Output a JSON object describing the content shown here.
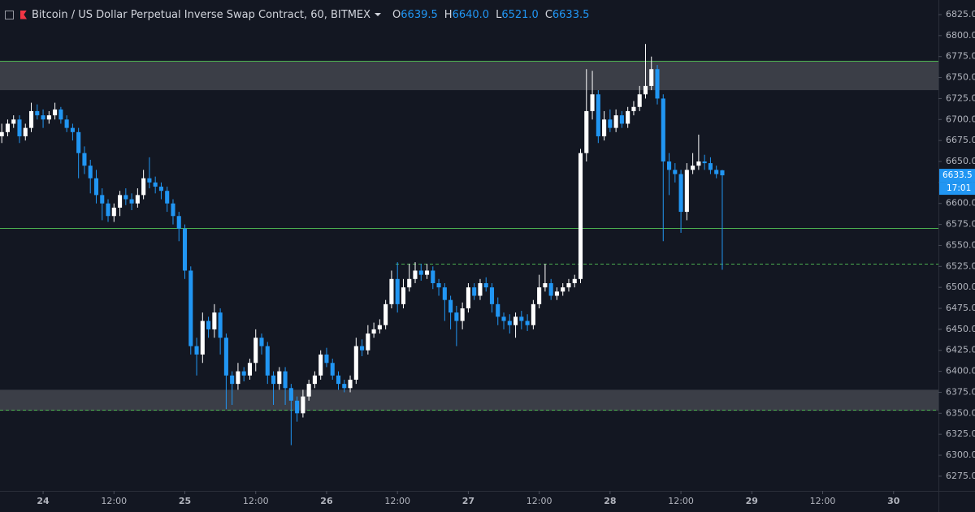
{
  "header": {
    "symbol": "Bitcoin / US Dollar Perpetual Inverse Swap Contract, 60, BITMEX",
    "ohlc": [
      {
        "key": "O",
        "value": "6639.5"
      },
      {
        "key": "H",
        "value": "6640.0"
      },
      {
        "key": "L",
        "value": "6521.0"
      },
      {
        "key": "C",
        "value": "6633.5"
      }
    ]
  },
  "chart_data": {
    "type": "candlestick",
    "up_color": "#ffffff",
    "down_color": "#2196f3",
    "grid": false,
    "xlim": [
      -7.3,
      151.6
    ],
    "ylim": [
      6257.5,
      6842.4
    ],
    "xticks": [
      {
        "value": 0,
        "label": "24"
      },
      {
        "value": 12,
        "label": "12:00"
      },
      {
        "value": 24,
        "label": "25"
      },
      {
        "value": 36,
        "label": "12:00"
      },
      {
        "value": 48,
        "label": "26"
      },
      {
        "value": 60,
        "label": "12:00"
      },
      {
        "value": 72,
        "label": "27"
      },
      {
        "value": 84,
        "label": "12:00"
      },
      {
        "value": 96,
        "label": "28"
      },
      {
        "value": 108,
        "label": "12:00"
      },
      {
        "value": 120,
        "label": "29"
      },
      {
        "value": 132,
        "label": "12:00"
      },
      {
        "value": 144,
        "label": "30"
      }
    ],
    "yticks": [
      {
        "value": 6275,
        "label": "6275.0"
      },
      {
        "value": 6300,
        "label": "6300.0"
      },
      {
        "value": 6325,
        "label": "6325.0"
      },
      {
        "value": 6350,
        "label": "6350.0"
      },
      {
        "value": 6375,
        "label": "6375.0"
      },
      {
        "value": 6400,
        "label": "6400.0"
      },
      {
        "value": 6425,
        "label": "6425.0"
      },
      {
        "value": 6450,
        "label": "6450.0"
      },
      {
        "value": 6475,
        "label": "6475.0"
      },
      {
        "value": 6500,
        "label": "6500.0"
      },
      {
        "value": 6525,
        "label": "6525.0"
      },
      {
        "value": 6550,
        "label": "6550.0"
      },
      {
        "value": 6575,
        "label": "6575.0"
      },
      {
        "value": 6600,
        "label": "6600.0"
      },
      {
        "value": 6625,
        "label": "6625.0"
      },
      {
        "value": 6650,
        "label": "6650.0"
      },
      {
        "value": 6675,
        "label": "6675.0"
      },
      {
        "value": 6700,
        "label": "6700.0"
      },
      {
        "value": 6725,
        "label": "6725.0"
      },
      {
        "value": 6750,
        "label": "6750.0"
      },
      {
        "value": 6775,
        "label": "6775.0"
      },
      {
        "value": 6800,
        "label": "6800.0"
      },
      {
        "value": 6825,
        "label": "6825.0"
      }
    ],
    "x": [
      -7,
      -6,
      -5,
      -4,
      -3,
      -2,
      -1,
      0,
      1,
      2,
      3,
      4,
      5,
      6,
      7,
      8,
      9,
      10,
      11,
      12,
      13,
      14,
      15,
      16,
      17,
      18,
      19,
      20,
      21,
      22,
      23,
      24,
      25,
      26,
      27,
      28,
      29,
      30,
      31,
      32,
      33,
      34,
      35,
      36,
      37,
      38,
      39,
      40,
      41,
      42,
      43,
      44,
      45,
      46,
      47,
      48,
      49,
      50,
      51,
      52,
      53,
      54,
      55,
      56,
      57,
      58,
      59,
      60,
      61,
      62,
      63,
      64,
      65,
      66,
      67,
      68,
      69,
      70,
      71,
      72,
      73,
      74,
      75,
      76,
      77,
      78,
      79,
      80,
      81,
      82,
      83,
      84,
      85,
      86,
      87,
      88,
      89,
      90,
      91,
      92,
      93,
      94,
      95,
      96,
      97,
      98,
      99,
      100,
      101,
      102,
      103,
      104,
      105,
      106,
      107,
      108,
      109,
      110,
      111,
      112,
      113,
      114,
      115
    ],
    "open": [
      6680,
      6685,
      6695,
      6700,
      6680,
      6690,
      6710,
      6705,
      6700,
      6705,
      6712,
      6700,
      6690,
      6685,
      6660,
      6645,
      6630,
      6610,
      6600,
      6585,
      6595,
      6610,
      6605,
      6600,
      6610,
      6630,
      6625,
      6620,
      6615,
      6600,
      6585,
      6570,
      6520,
      6430,
      6420,
      6460,
      6450,
      6470,
      6440,
      6395,
      6385,
      6400,
      6395,
      6410,
      6440,
      6430,
      6395,
      6385,
      6400,
      6380,
      6365,
      6350,
      6370,
      6385,
      6395,
      6420,
      6410,
      6395,
      6385,
      6380,
      6390,
      6430,
      6425,
      6445,
      6450,
      6455,
      6480,
      6510,
      6480,
      6500,
      6510,
      6520,
      6515,
      6520,
      6505,
      6500,
      6485,
      6470,
      6460,
      6475,
      6500,
      6490,
      6505,
      6500,
      6480,
      6465,
      6460,
      6455,
      6465,
      6460,
      6455,
      6480,
      6500,
      6505,
      6490,
      6495,
      6500,
      6505,
      6510,
      6660,
      6710,
      6730,
      6680,
      6700,
      6690,
      6705,
      6695,
      6710,
      6715,
      6730,
      6740,
      6760,
      6725,
      6650,
      6640,
      6635,
      6590,
      6640,
      6645,
      6650,
      6648,
      6640,
      6639.5
    ],
    "high": [
      6695,
      6700,
      6705,
      6705,
      6695,
      6720,
      6718,
      6712,
      6710,
      6720,
      6715,
      6705,
      6695,
      6690,
      6668,
      6652,
      6640,
      6618,
      6605,
      6600,
      6615,
      6618,
      6612,
      6618,
      6640,
      6655,
      6632,
      6625,
      6620,
      6605,
      6590,
      6575,
      6525,
      6440,
      6470,
      6465,
      6480,
      6475,
      6445,
      6400,
      6410,
      6405,
      6415,
      6450,
      6445,
      6435,
      6400,
      6405,
      6405,
      6385,
      6370,
      6378,
      6390,
      6400,
      6425,
      6428,
      6415,
      6400,
      6390,
      6395,
      6440,
      6438,
      6455,
      6458,
      6462,
      6485,
      6520,
      6530,
      6510,
      6528,
      6530,
      6528,
      6528,
      6525,
      6510,
      6505,
      6490,
      6478,
      6482,
      6505,
      6505,
      6510,
      6512,
      6505,
      6488,
      6470,
      6468,
      6470,
      6472,
      6468,
      6485,
      6515,
      6528,
      6510,
      6500,
      6505,
      6510,
      6515,
      6665,
      6760,
      6758,
      6735,
      6710,
      6712,
      6712,
      6710,
      6715,
      6722,
      6740,
      6790,
      6775,
      6765,
      6730,
      6660,
      6648,
      6640,
      6648,
      6660,
      6682,
      6658,
      6655,
      6645,
      6640
    ],
    "low": [
      6672,
      6680,
      6690,
      6672,
      6675,
      6685,
      6700,
      6690,
      6695,
      6700,
      6695,
      6685,
      6675,
      6630,
      6635,
      6612,
      6600,
      6580,
      6578,
      6578,
      6585,
      6598,
      6592,
      6595,
      6605,
      6618,
      6612,
      6605,
      6590,
      6575,
      6555,
      6510,
      6420,
      6395,
      6410,
      6440,
      6440,
      6420,
      6355,
      6360,
      6378,
      6388,
      6390,
      6400,
      6420,
      6385,
      6360,
      6378,
      6360,
      6312,
      6340,
      6345,
      6365,
      6380,
      6390,
      6405,
      6390,
      6378,
      6375,
      6375,
      6385,
      6418,
      6420,
      6440,
      6445,
      6450,
      6475,
      6470,
      6475,
      6495,
      6505,
      6508,
      6510,
      6498,
      6490,
      6460,
      6450,
      6430,
      6450,
      6470,
      6485,
      6485,
      6495,
      6470,
      6455,
      6450,
      6445,
      6440,
      6450,
      6448,
      6450,
      6475,
      6495,
      6485,
      6485,
      6490,
      6495,
      6500,
      6505,
      6650,
      6700,
      6672,
      6675,
      6685,
      6685,
      6690,
      6690,
      6705,
      6710,
      6725,
      6735,
      6718,
      6555,
      6610,
      6625,
      6565,
      6580,
      6635,
      6640,
      6640,
      6635,
      6630,
      6521
    ],
    "close": [
      6685,
      6695,
      6700,
      6680,
      6690,
      6710,
      6705,
      6700,
      6705,
      6712,
      6700,
      6690,
      6685,
      6660,
      6645,
      6630,
      6610,
      6600,
      6585,
      6595,
      6610,
      6605,
      6600,
      6610,
      6630,
      6625,
      6620,
      6615,
      6600,
      6585,
      6570,
      6520,
      6430,
      6420,
      6460,
      6450,
      6470,
      6440,
      6395,
      6385,
      6400,
      6395,
      6410,
      6440,
      6430,
      6395,
      6385,
      6400,
      6380,
      6365,
      6350,
      6370,
      6385,
      6395,
      6420,
      6410,
      6395,
      6385,
      6380,
      6390,
      6430,
      6425,
      6445,
      6450,
      6455,
      6480,
      6510,
      6480,
      6500,
      6510,
      6520,
      6515,
      6520,
      6505,
      6500,
      6485,
      6470,
      6460,
      6475,
      6500,
      6490,
      6505,
      6500,
      6480,
      6465,
      6460,
      6455,
      6465,
      6460,
      6455,
      6480,
      6500,
      6505,
      6490,
      6495,
      6500,
      6505,
      6510,
      6660,
      6710,
      6730,
      6680,
      6700,
      6690,
      6705,
      6695,
      6710,
      6715,
      6730,
      6740,
      6760,
      6725,
      6650,
      6640,
      6635,
      6590,
      6640,
      6645,
      6650,
      6648,
      6640,
      6635,
      6633.5
    ],
    "zones": [
      {
        "from": 6735,
        "to": 6770,
        "color": "#3b3e47"
      },
      {
        "from": 6353,
        "to": 6378,
        "color": "#3b3e47"
      }
    ],
    "levels": [
      {
        "value": 6770,
        "color": "#4caf50",
        "style": "solid",
        "from_x": -7.3
      },
      {
        "value": 6571,
        "color": "#4caf50",
        "style": "solid",
        "from_x": -7.3
      },
      {
        "value": 6528,
        "color": "#4caf50",
        "style": "dashed",
        "from_x": 59.7
      },
      {
        "value": 6354,
        "color": "#4caf50",
        "style": "dashed",
        "from_x": -7.3
      }
    ],
    "last_price": {
      "value": 6633.5,
      "countdown": "17:01",
      "color": "#2196f3"
    }
  }
}
